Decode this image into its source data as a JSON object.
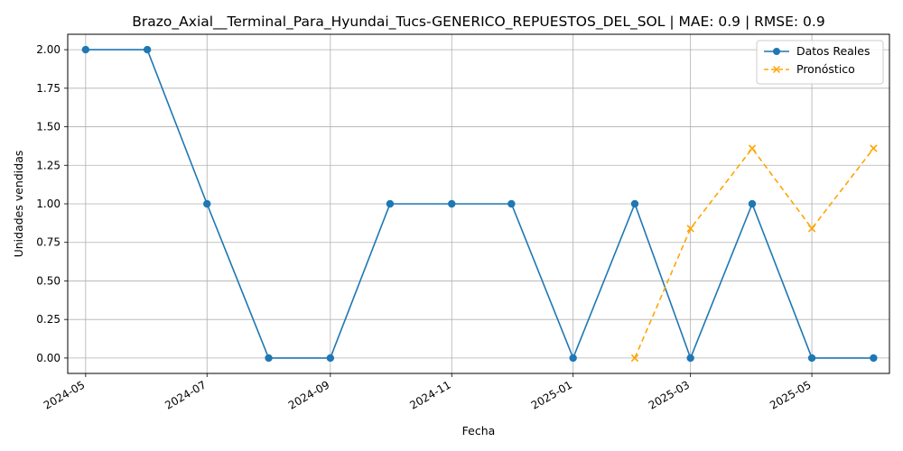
{
  "chart_data": {
    "type": "line",
    "title": "Brazo_Axial__Terminal_Para_Hyundai_Tucs-GENERICO_REPUESTOS_DEL_SOL | MAE: 0.9 | RMSE: 0.9",
    "xlabel": "Fecha",
    "ylabel": "Unidades vendidas",
    "ylim": [
      -0.1,
      2.1
    ],
    "xlim": [
      "2024-04-22",
      "2025-06-09"
    ],
    "yticks": [
      0.0,
      0.25,
      0.5,
      0.75,
      1.0,
      1.25,
      1.5,
      1.75,
      2.0
    ],
    "ytick_labels": [
      "0.00",
      "0.25",
      "0.50",
      "0.75",
      "1.00",
      "1.25",
      "1.50",
      "1.75",
      "2.00"
    ],
    "xticks": [
      "2024-05-01",
      "2024-07-01",
      "2024-09-01",
      "2024-11-01",
      "2025-01-01",
      "2025-03-01",
      "2025-05-01"
    ],
    "xtick_labels": [
      "2024-05",
      "2024-07",
      "2024-09",
      "2024-11",
      "2025-01",
      "2025-03",
      "2025-05"
    ],
    "grid": true,
    "legend_position": "top-right",
    "series": [
      {
        "name": "Datos Reales",
        "color": "#1f77b4",
        "line_style": "solid",
        "marker": "circle",
        "x": [
          "2024-05-01",
          "2024-06-01",
          "2024-07-01",
          "2024-08-01",
          "2024-09-01",
          "2024-10-01",
          "2024-11-01",
          "2024-12-01",
          "2025-01-01",
          "2025-02-01",
          "2025-03-01",
          "2025-04-01",
          "2025-05-01",
          "2025-06-01"
        ],
        "values": [
          2,
          2,
          1,
          0,
          0,
          1,
          1,
          1,
          0,
          1,
          0,
          1,
          0,
          0
        ]
      },
      {
        "name": "Pronóstico",
        "color": "#ffa500",
        "line_style": "dashed",
        "marker": "x",
        "x": [
          "2025-02-01",
          "2025-03-01",
          "2025-04-01",
          "2025-05-01",
          "2025-06-01"
        ],
        "values": [
          0.0,
          0.84,
          1.36,
          0.84,
          1.36
        ]
      }
    ]
  }
}
